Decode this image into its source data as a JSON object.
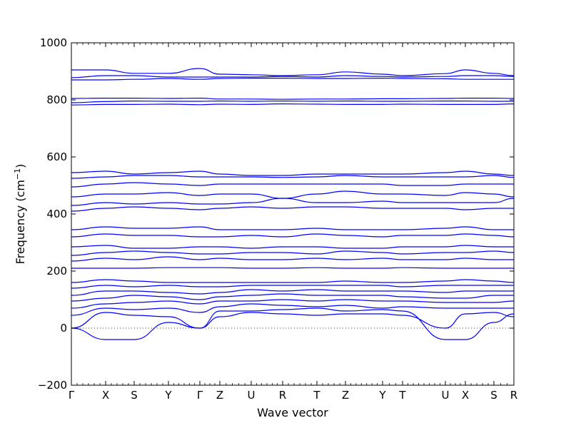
{
  "chart_data": {
    "type": "line",
    "title": "",
    "xlabel": "Wave vector",
    "ylabel": "Frequency (cm",
    "ylabel_unit_superscript": "−1",
    "ylabel_close": ")",
    "ylim": [
      -200,
      1000
    ],
    "yticks": [
      -200,
      0,
      200,
      400,
      600,
      800,
      1000
    ],
    "xlim": [
      0,
      15.5
    ],
    "grid": false,
    "legend": "none",
    "line_color": "#0000ff",
    "zero_line": true,
    "high_symmetry_points": [
      {
        "label": "Γ",
        "x": 0.0
      },
      {
        "label": "X",
        "x": 1.2
      },
      {
        "label": "S",
        "x": 2.2
      },
      {
        "label": "Y",
        "x": 3.4
      },
      {
        "label": "Γ",
        "x": 4.5
      },
      {
        "label": "Z",
        "x": 5.2
      },
      {
        "label": "U",
        "x": 6.3
      },
      {
        "label": "R",
        "x": 7.4
      },
      {
        "label": "T",
        "x": 8.6
      },
      {
        "label": "Z",
        "x": 9.6
      },
      {
        "label": "Y",
        "x": 10.9
      },
      {
        "label": "T",
        "x": 11.6
      },
      {
        "label": "U",
        "x": 13.1
      },
      {
        "label": "X",
        "x": 13.8
      },
      {
        "label": "S",
        "x": 14.8
      },
      {
        "label": "R",
        "x": 15.5
      }
    ],
    "series": [
      {
        "values": [
          0,
          55,
          45,
          40,
          0,
          40,
          55,
          50,
          45,
          50,
          50,
          45,
          0,
          50,
          55,
          40
        ]
      },
      {
        "values": [
          0,
          -40,
          -40,
          20,
          0,
          60,
          60,
          65,
          70,
          60,
          65,
          60,
          -40,
          -40,
          20,
          50
        ]
      },
      {
        "values": [
          45,
          70,
          65,
          70,
          55,
          75,
          85,
          80,
          75,
          80,
          70,
          75,
          70,
          70,
          70,
          70
        ]
      },
      {
        "values": [
          70,
          85,
          90,
          95,
          85,
          95,
          95,
          100,
          95,
          100,
          95,
          95,
          90,
          90,
          90,
          95
        ]
      },
      {
        "values": [
          95,
          105,
          115,
          110,
          100,
          110,
          115,
          120,
          115,
          115,
          115,
          110,
          105,
          105,
          115,
          115
        ]
      },
      {
        "values": [
          115,
          130,
          130,
          125,
          120,
          125,
          135,
          130,
          135,
          130,
          130,
          130,
          125,
          130,
          130,
          130
        ]
      },
      {
        "values": [
          140,
          150,
          145,
          150,
          145,
          145,
          150,
          150,
          150,
          150,
          150,
          145,
          150,
          150,
          150,
          150
        ]
      },
      {
        "values": [
          160,
          170,
          165,
          160,
          160,
          160,
          160,
          160,
          160,
          165,
          160,
          160,
          165,
          170,
          165,
          160
        ]
      },
      {
        "values": [
          210,
          210,
          210,
          212,
          212,
          212,
          210,
          210,
          212,
          210,
          210,
          212,
          210,
          210,
          210,
          210
        ]
      },
      {
        "values": [
          235,
          245,
          240,
          250,
          240,
          245,
          240,
          240,
          245,
          240,
          245,
          240,
          240,
          245,
          240,
          240
        ]
      },
      {
        "values": [
          255,
          265,
          270,
          265,
          260,
          260,
          265,
          265,
          260,
          270,
          265,
          260,
          265,
          265,
          270,
          265
        ]
      },
      {
        "values": [
          285,
          290,
          280,
          280,
          285,
          285,
          280,
          285,
          285,
          280,
          280,
          285,
          285,
          290,
          285,
          285
        ]
      },
      {
        "values": [
          320,
          330,
          325,
          325,
          320,
          320,
          325,
          320,
          330,
          325,
          320,
          325,
          325,
          330,
          325,
          320
        ]
      },
      {
        "values": [
          345,
          355,
          350,
          350,
          355,
          345,
          345,
          345,
          350,
          345,
          345,
          345,
          350,
          355,
          345,
          345
        ]
      },
      {
        "values": [
          410,
          420,
          425,
          420,
          415,
          420,
          425,
          420,
          425,
          425,
          420,
          420,
          420,
          415,
          420,
          420
        ]
      },
      {
        "values": [
          430,
          440,
          435,
          440,
          435,
          435,
          440,
          455,
          440,
          440,
          445,
          440,
          440,
          440,
          440,
          455
        ]
      },
      {
        "values": [
          460,
          470,
          470,
          475,
          465,
          470,
          470,
          455,
          470,
          480,
          470,
          470,
          465,
          475,
          470,
          460
        ]
      },
      {
        "values": [
          495,
          505,
          510,
          505,
          500,
          505,
          505,
          505,
          505,
          505,
          505,
          500,
          500,
          505,
          505,
          505
        ]
      },
      {
        "values": [
          525,
          530,
          535,
          535,
          530,
          530,
          530,
          528,
          530,
          535,
          530,
          530,
          530,
          530,
          535,
          528
        ]
      },
      {
        "values": [
          545,
          550,
          540,
          545,
          550,
          540,
          535,
          535,
          540,
          540,
          540,
          540,
          545,
          550,
          540,
          535
        ]
      },
      {
        "values": [
          782,
          784,
          784,
          785,
          783,
          785,
          784,
          786,
          785,
          784,
          784,
          785,
          784,
          784,
          784,
          786
        ]
      },
      {
        "values": [
          790,
          794,
          796,
          795,
          795,
          796,
          795,
          796,
          795,
          796,
          795,
          795,
          796,
          796,
          795,
          795
        ]
      },
      {
        "values": [
          805,
          806,
          806,
          805,
          806,
          803,
          803,
          802,
          803,
          803,
          804,
          804,
          805,
          806,
          806,
          805
        ]
      },
      {
        "values": [
          870,
          870,
          872,
          875,
          872,
          875,
          876,
          876,
          875,
          875,
          876,
          875,
          874,
          872,
          872,
          872
        ]
      },
      {
        "values": [
          878,
          885,
          885,
          880,
          880,
          880,
          880,
          882,
          880,
          885,
          882,
          880,
          882,
          885,
          885,
          882
        ]
      },
      {
        "values": [
          905,
          905,
          893,
          893,
          910,
          890,
          888,
          885,
          888,
          898,
          890,
          885,
          892,
          905,
          893,
          885
        ]
      }
    ]
  }
}
